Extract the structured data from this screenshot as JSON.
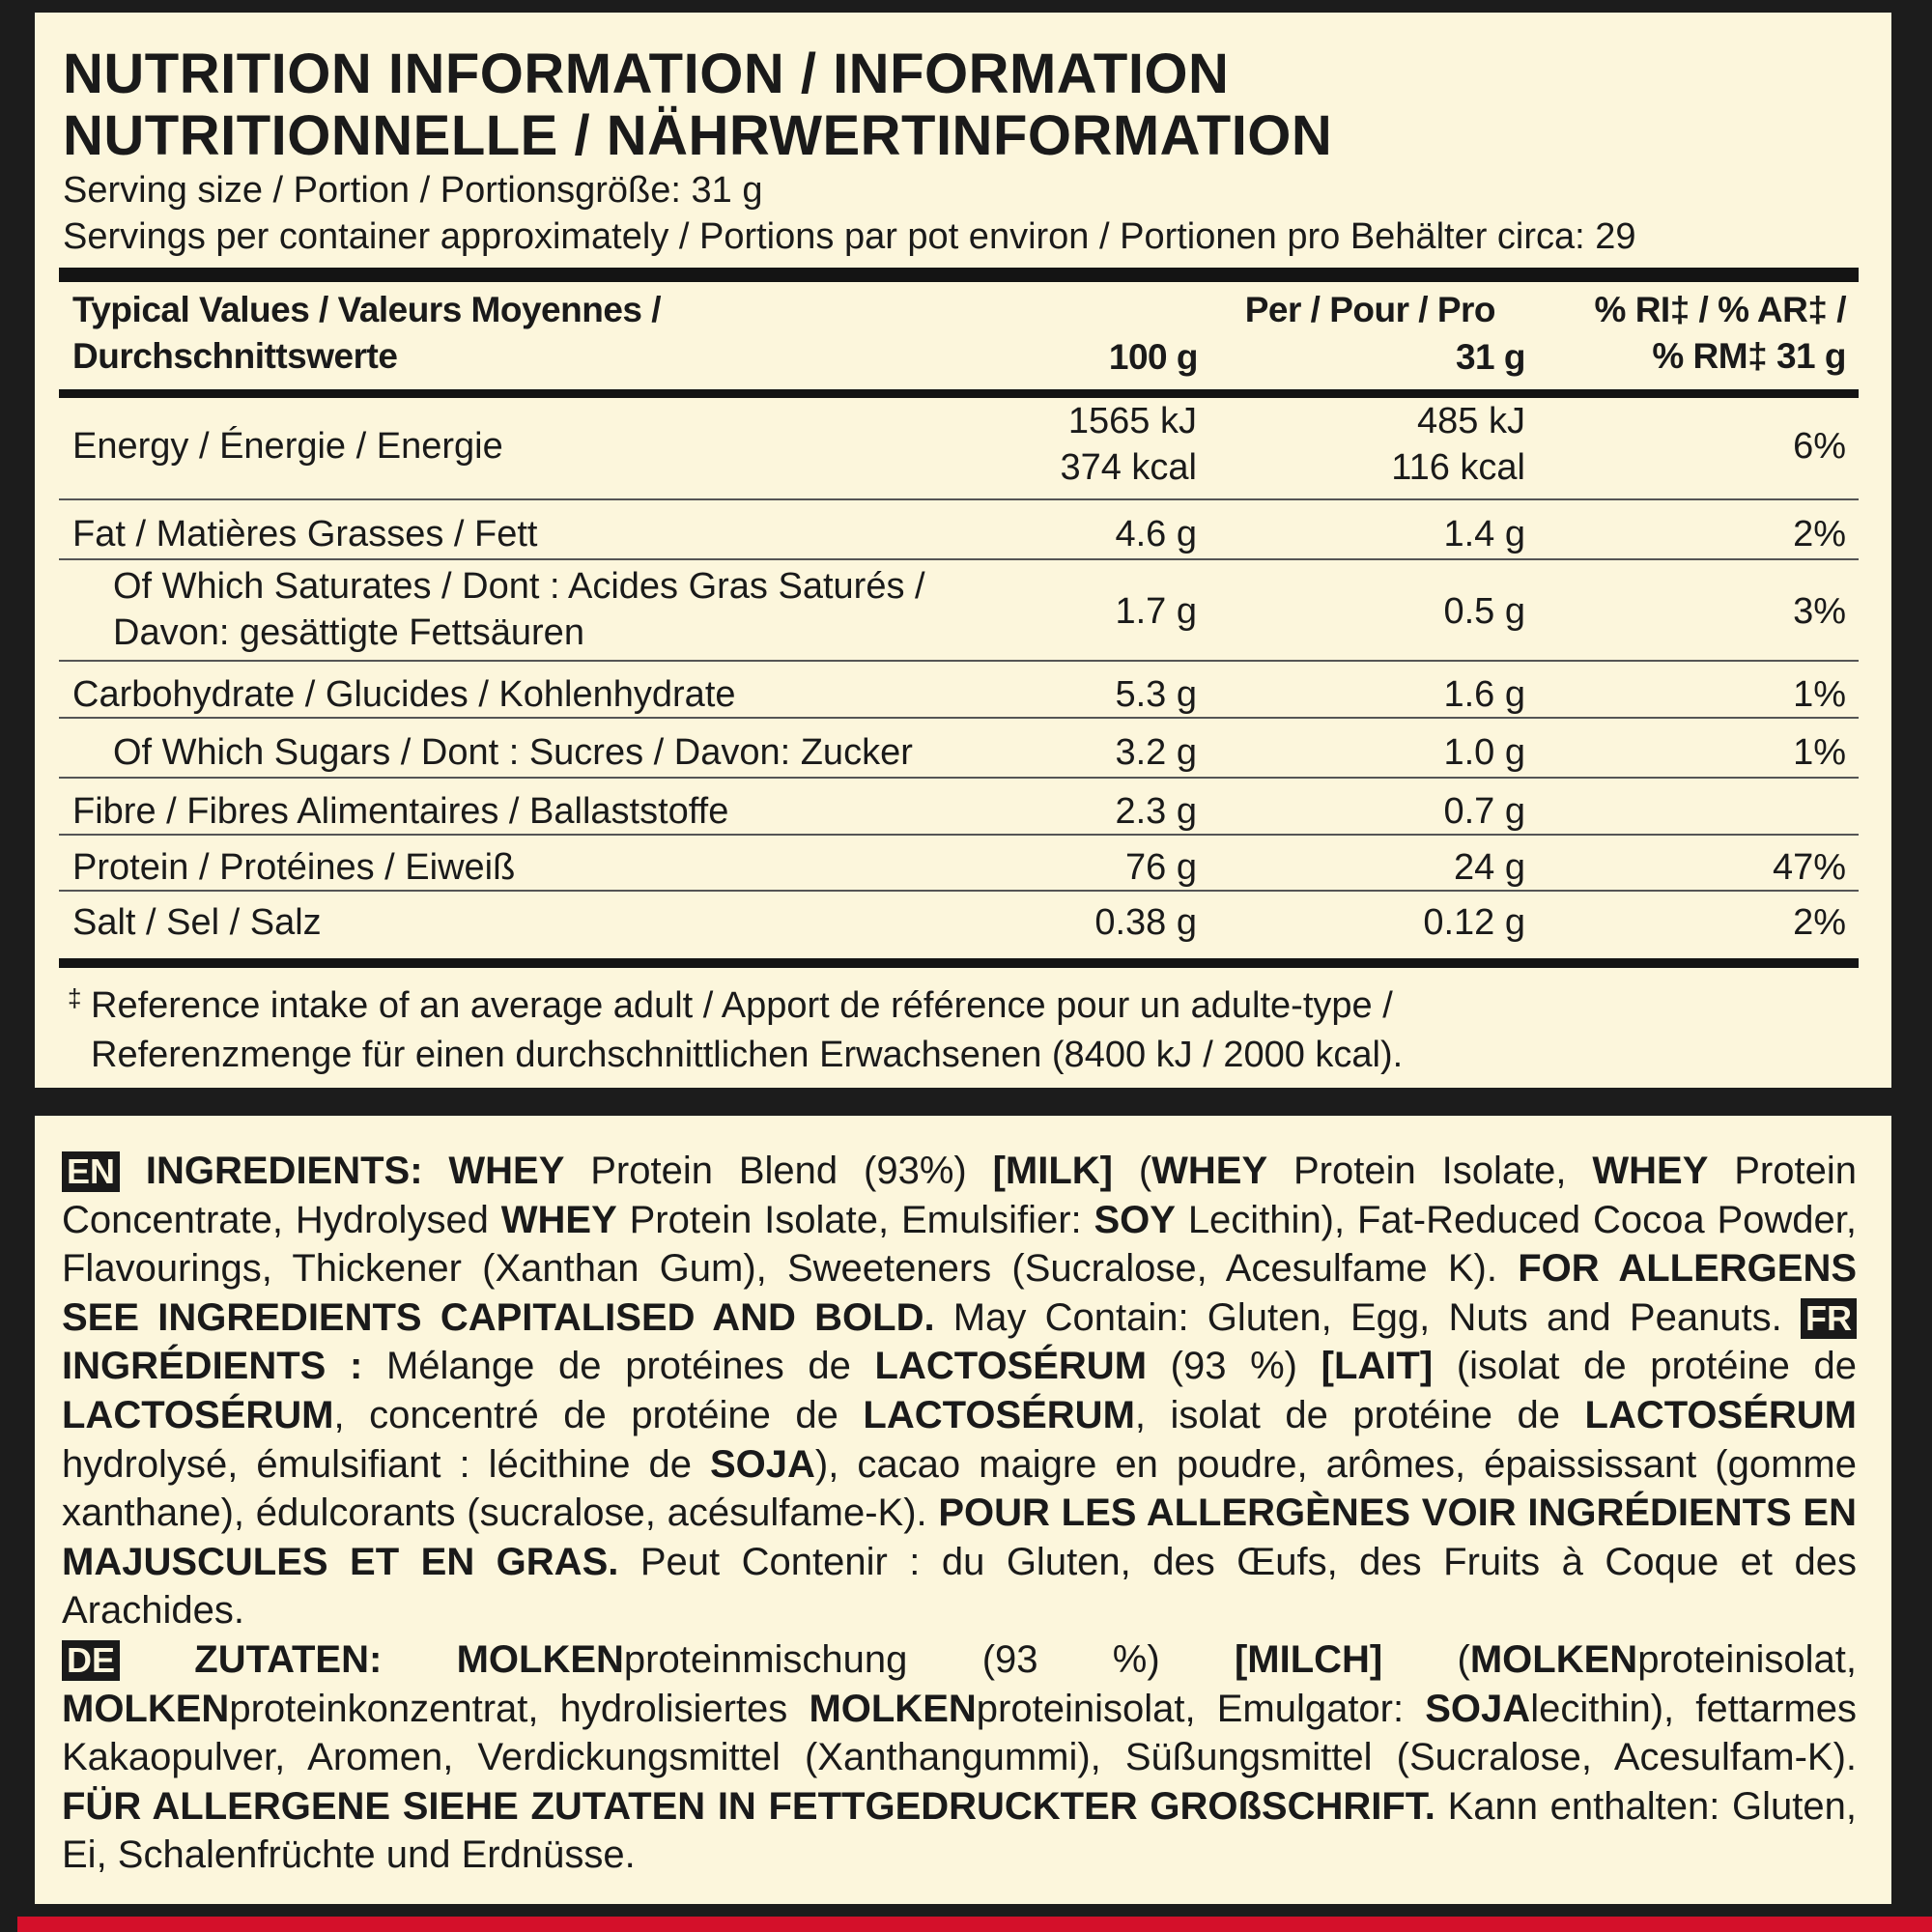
{
  "title": {
    "line1": "NUTRITION INFORMATION / INFORMATION",
    "line2": "NUTRITIONNELLE / NÄHRWERTINFORMATION"
  },
  "serving_size": "Serving size / Portion / Portionsgröße: 31 g",
  "servings_per_container": "Servings per container approximately / Portions par pot environ / Portionen pro Behälter circa: 29",
  "table": {
    "headers": {
      "label_line1": "Typical Values / Valeurs Moyennes /",
      "label_line2": "Durchschnittswerte",
      "per_line1": "Per / Pour / Pro",
      "per100": "100 g",
      "per31": "31 g",
      "ri_line1": "% RI‡ / % AR‡ /",
      "ri_line2": "% RM‡ 31 g"
    },
    "rows": [
      {
        "label": "Energy / Énergie / Energie",
        "per100": "1565 kJ",
        "per100b": "374 kcal",
        "per31": "485 kJ",
        "per31b": "116 kcal",
        "ri": "6%"
      },
      {
        "label": "Fat / Matières Grasses / Fett",
        "per100": "4.6 g",
        "per31": "1.4 g",
        "ri": "2%"
      },
      {
        "label": "Of Which Saturates / Dont : Acides Gras Saturés /",
        "label2": "Davon: gesättigte Fettsäuren",
        "indent": true,
        "per100": "1.7 g",
        "per31": "0.5 g",
        "ri": "3%"
      },
      {
        "label": "Carbohydrate / Glucides / Kohlenhydrate",
        "per100": "5.3 g",
        "per31": "1.6 g",
        "ri": "1%"
      },
      {
        "label": "Of Which Sugars / Dont : Sucres / Davon: Zucker",
        "indent": true,
        "per100": "3.2 g",
        "per31": "1.0 g",
        "ri": "1%"
      },
      {
        "label": "Fibre / Fibres Alimentaires / Ballaststoffe",
        "per100": "2.3 g",
        "per31": "0.7 g",
        "ri": ""
      },
      {
        "label": "Protein / Protéines / Eiweiß",
        "per100": "76 g",
        "per31": "24 g",
        "ri": "47%"
      },
      {
        "label": "Salt / Sel / Salz",
        "per100": "0.38 g",
        "per31": "0.12 g",
        "ri": "2%"
      }
    ]
  },
  "footnote": {
    "mark": "‡",
    "line1": "Reference intake of an average adult / Apport de référence pour un adulte-type /",
    "line2": "Referenzmenge für einen durchschnittlichen Erwachsenen (8400 kJ / 2000 kcal)."
  },
  "ingredients": [
    [
      {
        "badge": "EN"
      },
      {
        "t": "INGREDIENTS: WHEY",
        "b": 1
      },
      {
        "t": " Protein Blend (93%) "
      },
      {
        "t": "[MILK]",
        "b": 1
      },
      {
        "t": " ("
      },
      {
        "t": "WHEY",
        "b": 1
      },
      {
        "t": " Protein Isolate, "
      },
      {
        "t": "WHEY",
        "b": 1
      },
      {
        "t": " Protein Concentrate, Hydrolysed "
      },
      {
        "t": "WHEY",
        "b": 1
      },
      {
        "t": " Protein Isolate, Emulsifier: "
      },
      {
        "t": "SOY",
        "b": 1
      },
      {
        "t": " Lecithin), Fat-Reduced Cocoa Powder, Flavourings, Thickener (Xanthan Gum), Sweeteners (Sucralose, Acesulfame K). "
      },
      {
        "t": "FOR ALLERGENS SEE INGREDIENTS CAPITALISED AND BOLD.",
        "b": 1
      },
      {
        "t": " May Contain: Gluten, Egg, Nuts and Peanuts. "
      },
      {
        "badge": "FR"
      },
      {
        "t": "INGRÉDIENTS :",
        "b": 1
      },
      {
        "t": " Mélange de protéines de "
      },
      {
        "t": "LACTOSÉRUM",
        "b": 1
      },
      {
        "t": " (93 %) "
      },
      {
        "t": "[LAIT]",
        "b": 1
      },
      {
        "t": " (isolat de protéine de "
      },
      {
        "t": "LACTOSÉRUM",
        "b": 1
      },
      {
        "t": ", concentré de protéine de "
      },
      {
        "t": "LACTOSÉRUM",
        "b": 1
      },
      {
        "t": ", isolat de protéine de "
      },
      {
        "t": "LACTOSÉRUM",
        "b": 1
      },
      {
        "t": " hydrolysé, émulsifiant : lécithine de "
      },
      {
        "t": "SOJA",
        "b": 1
      },
      {
        "t": "), cacao maigre en poudre, arômes, épaississant (gomme xanthane), édulcorants (sucralose, acésulfame-K). "
      },
      {
        "t": "POUR LES ALLERGÈNES VOIR INGRÉDIENTS EN MAJUSCULES ET EN GRAS.",
        "b": 1
      },
      {
        "t": " Peut Contenir : du Gluten, des Œufs, des Fruits à Coque et des Arachides."
      }
    ],
    [
      {
        "badge": "DE"
      },
      {
        "t": "ZUTATEN: MOLKEN",
        "b": 1
      },
      {
        "t": "proteinmischung (93 %) "
      },
      {
        "t": "[MILCH]",
        "b": 1
      },
      {
        "t": " ("
      },
      {
        "t": "MOLKEN",
        "b": 1
      },
      {
        "t": "proteinisolat, "
      },
      {
        "t": "MOLKEN",
        "b": 1
      },
      {
        "t": "proteinkonzentrat, hydrolisiertes "
      },
      {
        "t": "MOLKEN",
        "b": 1
      },
      {
        "t": "proteinisolat, Emulgator: "
      },
      {
        "t": "SOJA",
        "b": 1
      },
      {
        "t": "lecithin), fettarmes Kakaopulver, Aromen, Verdickungsmittel (Xanthangummi), Süßungsmittel (Sucralose, Acesulfam-K). "
      },
      {
        "t": "FÜR ALLERGENE SIEHE ZUTATEN IN FETTGEDRUCKTER GROßSCHRIFT.",
        "b": 1
      },
      {
        "t": " Kann enthalten: Gluten, Ei, Schalenfrüchte und Erdnüsse."
      }
    ]
  ],
  "colors": {
    "panel": "#fcf6dc",
    "frame": "#1c1c1c",
    "accent_red": "#d4102a"
  }
}
